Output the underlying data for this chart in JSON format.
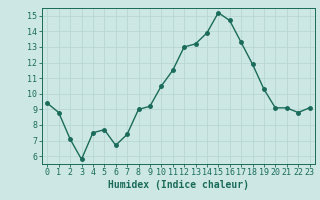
{
  "x": [
    0,
    1,
    2,
    3,
    4,
    5,
    6,
    7,
    8,
    9,
    10,
    11,
    12,
    13,
    14,
    15,
    16,
    17,
    18,
    19,
    20,
    21,
    22,
    23
  ],
  "y": [
    9.4,
    8.8,
    7.1,
    5.8,
    7.5,
    7.7,
    6.7,
    7.4,
    9.0,
    9.2,
    10.5,
    11.5,
    13.0,
    13.2,
    13.9,
    15.2,
    14.7,
    13.3,
    11.9,
    10.3,
    9.1,
    9.1,
    8.8,
    9.1
  ],
  "line_color": "#1a6b5a",
  "marker": "o",
  "markersize": 2.5,
  "linewidth": 1.0,
  "xlabel": "Humidex (Indice chaleur)",
  "xlabel_fontsize": 7,
  "ylim": [
    5.5,
    15.5
  ],
  "xlim": [
    -0.5,
    23.5
  ],
  "yticks": [
    6,
    7,
    8,
    9,
    10,
    11,
    12,
    13,
    14,
    15
  ],
  "xticks": [
    0,
    1,
    2,
    3,
    4,
    5,
    6,
    7,
    8,
    9,
    10,
    11,
    12,
    13,
    14,
    15,
    16,
    17,
    18,
    19,
    20,
    21,
    22,
    23
  ],
  "grid_color": "#b8d8d4",
  "bg_color": "#cde8e4",
  "tick_fontsize": 6,
  "title": ""
}
